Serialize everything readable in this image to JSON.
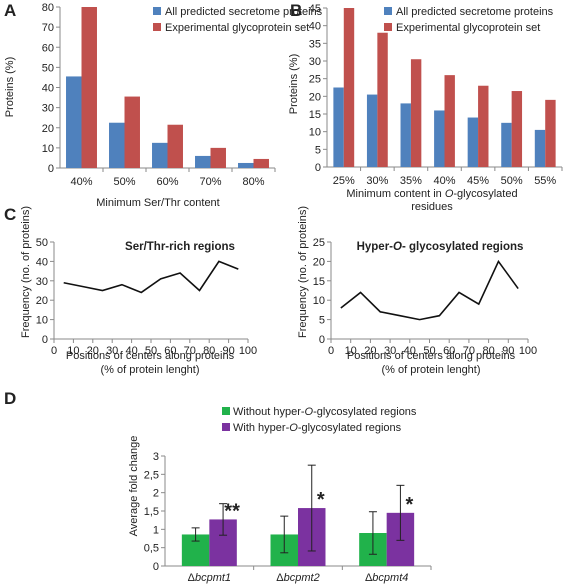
{
  "panels": [
    "A",
    "B",
    "C",
    "D"
  ],
  "chart_data": [
    {
      "id": "A",
      "type": "bar",
      "ylabel": "Proteins (%)",
      "xlabel": "Minimum Ser/Thr content",
      "ylim": [
        0,
        80
      ],
      "yticks": [
        0,
        10,
        20,
        30,
        40,
        50,
        60,
        70,
        80
      ],
      "categories": [
        "40%",
        "50%",
        "60%",
        "70%",
        "80%"
      ],
      "legend_position": "top-right",
      "series": [
        {
          "name": "All predicted secretome proteins",
          "color": "#4f81bd",
          "values": [
            45.5,
            22.5,
            12.5,
            6,
            2.5
          ]
        },
        {
          "name": "Experimental glycoprotein set",
          "color": "#c0504d",
          "values": [
            80,
            35.5,
            21.5,
            10,
            4.5
          ]
        }
      ]
    },
    {
      "id": "B",
      "type": "bar",
      "ylabel": "Proteins (%)",
      "xlabel": "Minimum content in O-glycosylated residues",
      "ylim": [
        0,
        45
      ],
      "yticks": [
        0,
        5,
        10,
        15,
        20,
        25,
        30,
        35,
        40,
        45
      ],
      "categories": [
        "25%",
        "30%",
        "35%",
        "40%",
        "45%",
        "50%",
        "55%"
      ],
      "legend_position": "top-right",
      "series": [
        {
          "name": "All predicted secretome proteins",
          "color": "#4f81bd",
          "values": [
            22.5,
            20.5,
            18,
            16,
            14,
            12.5,
            10.5
          ]
        },
        {
          "name": "Experimental glycoprotein set",
          "color": "#c0504d",
          "values": [
            45,
            38,
            30.5,
            26,
            23,
            21.5,
            19
          ]
        }
      ]
    },
    {
      "id": "C1",
      "type": "line",
      "title": "Ser/Thr-rich regions",
      "ylabel": "Frequency (no. of proteins)",
      "xlabel": "Positions of centers along proteins",
      "xlabel2": "(% of protein lenght)",
      "xlim": [
        0,
        100
      ],
      "ylim": [
        0,
        50
      ],
      "xticks": [
        0,
        10,
        20,
        30,
        40,
        50,
        60,
        70,
        80,
        90,
        100
      ],
      "yticks": [
        0,
        10,
        20,
        30,
        40,
        50
      ],
      "x": [
        5,
        15,
        25,
        35,
        45,
        55,
        65,
        75,
        85,
        95
      ],
      "y": [
        29,
        27,
        25,
        28,
        24,
        31,
        34,
        25,
        40,
        36
      ]
    },
    {
      "id": "C2",
      "type": "line",
      "title": "Hyper-O- glycosylated regions",
      "ylabel": "Frequency (no. of proteins)",
      "xlabel": "Positions of centers along proteins",
      "xlabel2": "(% of protein lenght)",
      "xlim": [
        0,
        100
      ],
      "ylim": [
        0,
        25
      ],
      "xticks": [
        0,
        10,
        20,
        30,
        40,
        50,
        60,
        70,
        80,
        90,
        100
      ],
      "yticks": [
        0,
        5,
        10,
        15,
        20,
        25
      ],
      "x": [
        5,
        15,
        25,
        35,
        45,
        55,
        65,
        75,
        85,
        95
      ],
      "y": [
        8,
        12,
        7,
        6,
        5,
        6,
        12,
        9,
        20,
        13
      ]
    },
    {
      "id": "D",
      "type": "bar",
      "ylabel": "Average fold change",
      "ylim": [
        0,
        3
      ],
      "yticks": [
        "0",
        "0,5",
        "1",
        "1,5",
        "2",
        "2,5",
        "3"
      ],
      "categories": [
        "Δbcpmt1",
        "Δbcpmt2",
        "Δbcpmt4"
      ],
      "legend_position": "top",
      "series": [
        {
          "name": "Without hyper-O-glycosylated regions",
          "color": "#21b24b",
          "values": [
            0.86,
            0.86,
            0.9
          ],
          "err": [
            0.18,
            0.5,
            0.58
          ]
        },
        {
          "name": "With hyper-O-glycosylated regions",
          "color": "#7b32a0",
          "values": [
            1.27,
            1.58,
            1.45
          ],
          "err": [
            0.43,
            1.17,
            0.75
          ]
        }
      ],
      "significance": [
        "**",
        "*",
        "*"
      ]
    }
  ]
}
